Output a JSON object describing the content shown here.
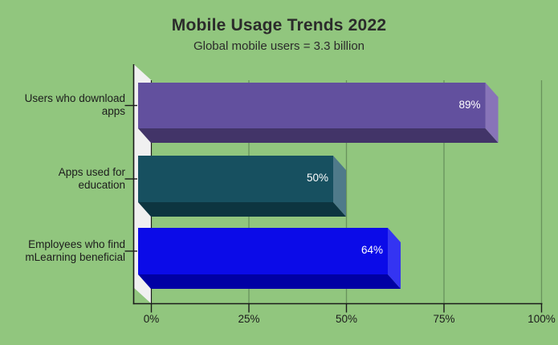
{
  "colors": {
    "background": "#91c67e",
    "wall": "#f0f0f0",
    "gridline": "#69925c",
    "axis": "#1a1a1a",
    "label_text": "#1c1c1c",
    "title_text": "#2b2b2b",
    "value_label_text": "#ffffff"
  },
  "chart_data": {
    "type": "bar",
    "orientation": "horizontal",
    "style": "3d",
    "title": "Mobile Usage Trends 2022",
    "subtitle": "Global mobile users = 3.3 billion",
    "xlabel": "",
    "ylabel": "",
    "xlim": [
      0,
      100
    ],
    "grid": "vertical gridlines at each x tick",
    "legend": "none",
    "x_ticks": [
      {
        "label": "0%",
        "value": 0
      },
      {
        "label": "25%",
        "value": 25
      },
      {
        "label": "50%",
        "value": 50
      },
      {
        "label": "75%",
        "value": 75
      },
      {
        "label": "100%",
        "value": 100
      }
    ],
    "categories": [
      "Users who download apps",
      "Apps used for education",
      "Employees who find mLearning beneficial"
    ],
    "values": [
      89,
      50,
      64
    ],
    "bars": [
      {
        "category": "Users who download apps",
        "category_lines": [
          "Users who download",
          "apps"
        ],
        "value": 89,
        "value_label": "89%",
        "color_front": "#62509e",
        "color_side": "#8874b8",
        "color_bottom": "#423468"
      },
      {
        "category": "Apps used for education",
        "category_lines": [
          "Apps used for",
          "education"
        ],
        "value": 50,
        "value_label": "50%",
        "color_front": "#175060",
        "color_side": "#4f7a8a",
        "color_bottom": "#0d3540"
      },
      {
        "category": "Employees who find mLearning beneficial",
        "category_lines": [
          "Employees who find",
          "mLearning beneficial"
        ],
        "value": 64,
        "value_label": "64%",
        "color_front": "#0b0be8",
        "color_side": "#3434f2",
        "color_bottom": "#0000a4"
      }
    ]
  }
}
